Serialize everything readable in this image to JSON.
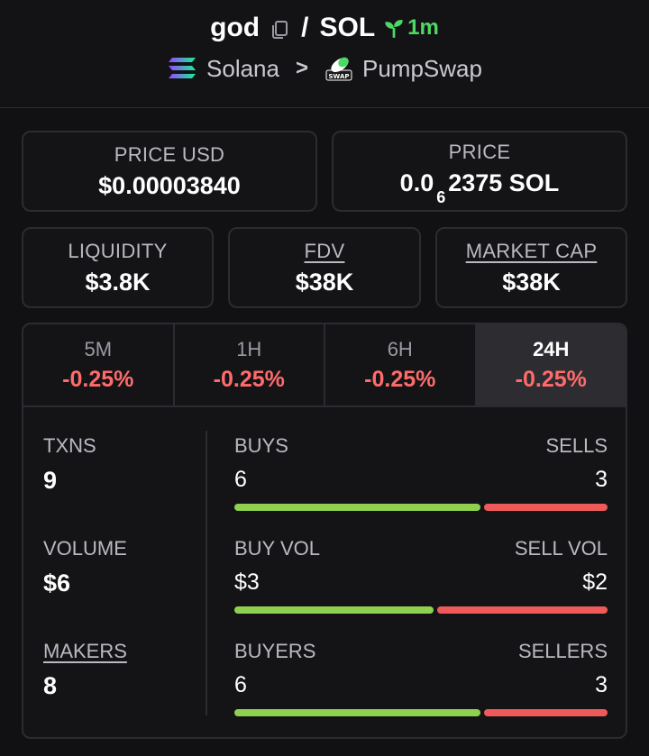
{
  "header": {
    "token": "god",
    "slash": "/",
    "quote": "SOL",
    "age": "1m",
    "chain": "Solana",
    "separator": ">",
    "dex": "PumpSwap",
    "dex_logo_text": "SWAP"
  },
  "cards": {
    "price_usd": {
      "label": "PRICE USD",
      "value": "$0.00003840"
    },
    "price": {
      "label": "PRICE",
      "value_prefix": "0.0",
      "value_sub": "6",
      "value_suffix": "2375 SOL"
    },
    "liquidity": {
      "label": "LIQUIDITY",
      "value": "$3.8K"
    },
    "fdv": {
      "label": "FDV",
      "value": "$38K"
    },
    "market_cap": {
      "label": "MARKET CAP",
      "value": "$38K"
    }
  },
  "tabs": [
    {
      "label": "5M",
      "value": "-0.25%"
    },
    {
      "label": "1H",
      "value": "-0.25%"
    },
    {
      "label": "6H",
      "value": "-0.25%"
    },
    {
      "label": "24H",
      "value": "-0.25%",
      "active": true
    }
  ],
  "metrics": {
    "txns": {
      "label": "TXNS",
      "value": "9"
    },
    "volume": {
      "label": "VOLUME",
      "value": "$6"
    },
    "makers": {
      "label": "MAKERS",
      "value": "8"
    }
  },
  "rows": {
    "buys_sells": {
      "left_label": "BUYS",
      "right_label": "SELLS",
      "left_value": "6",
      "right_value": "3",
      "buy_fraction": 0.667
    },
    "volumes": {
      "left_label": "BUY VOL",
      "right_label": "SELL VOL",
      "left_value": "$3",
      "right_value": "$2",
      "buy_fraction": 0.54
    },
    "buyers_sellers": {
      "left_label": "BUYERS",
      "right_label": "SELLERS",
      "left_value": "6",
      "right_value": "3",
      "buy_fraction": 0.667
    }
  },
  "colors": {
    "positive": "#8fd14f",
    "negative": "#ee5a5a",
    "age": "#4cd964"
  }
}
